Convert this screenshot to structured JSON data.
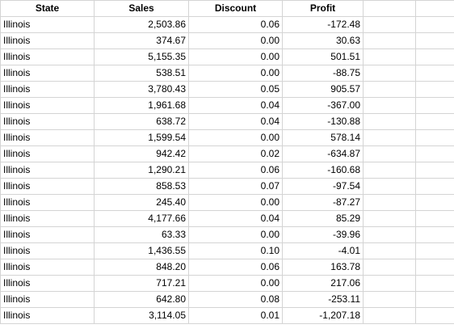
{
  "columns": [
    "State",
    "Sales",
    "Discount",
    "Profit",
    "",
    ""
  ],
  "rows": [
    [
      "Illinois",
      "2,503.86",
      "0.06",
      "-172.48"
    ],
    [
      "Illinois",
      "374.67",
      "0.00",
      "30.63"
    ],
    [
      "Illinois",
      "5,155.35",
      "0.00",
      "501.51"
    ],
    [
      "Illinois",
      "538.51",
      "0.00",
      "-88.75"
    ],
    [
      "Illinois",
      "3,780.43",
      "0.05",
      "905.57"
    ],
    [
      "Illinois",
      "1,961.68",
      "0.04",
      "-367.00"
    ],
    [
      "Illinois",
      "638.72",
      "0.04",
      "-130.88"
    ],
    [
      "Illinois",
      "1,599.54",
      "0.00",
      "578.14"
    ],
    [
      "Illinois",
      "942.42",
      "0.02",
      "-634.87"
    ],
    [
      "Illinois",
      "1,290.21",
      "0.06",
      "-160.68"
    ],
    [
      "Illinois",
      "858.53",
      "0.07",
      "-97.54"
    ],
    [
      "Illinois",
      "245.40",
      "0.00",
      "-87.27"
    ],
    [
      "Illinois",
      "4,177.66",
      "0.04",
      "85.29"
    ],
    [
      "Illinois",
      "63.33",
      "0.00",
      "-39.96"
    ],
    [
      "Illinois",
      "1,436.55",
      "0.10",
      "-4.01"
    ],
    [
      "Illinois",
      "848.20",
      "0.06",
      "163.78"
    ],
    [
      "Illinois",
      "717.21",
      "0.00",
      "217.06"
    ],
    [
      "Illinois",
      "642.80",
      "0.08",
      "-253.11"
    ],
    [
      "Illinois",
      "3,114.05",
      "0.01",
      "-1,207.18"
    ]
  ]
}
